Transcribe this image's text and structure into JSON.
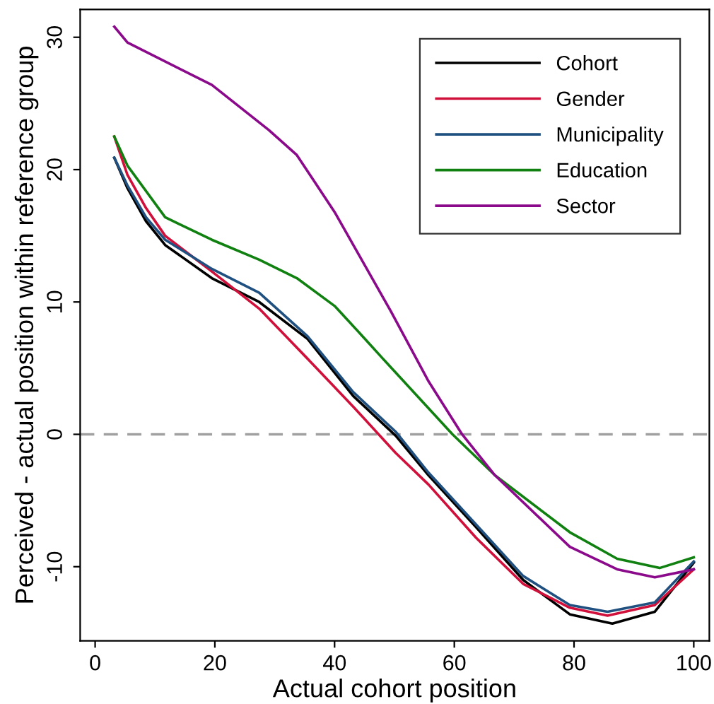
{
  "chart_data": {
    "type": "line",
    "xlabel": "Actual cohort position",
    "ylabel": "Perceived - actual position within reference group",
    "xlim": [
      -2.5,
      102.6
    ],
    "ylim": [
      -15.6,
      32.1
    ],
    "xticks": [
      0,
      20,
      40,
      60,
      80,
      100
    ],
    "yticks": [
      -10,
      0,
      10,
      20,
      30
    ],
    "grid": false,
    "legend": "top right",
    "marker": "none",
    "line_style": "solid",
    "ref_lines": [
      {
        "axis": "y",
        "value": 0,
        "color": "#a0a0a0",
        "line_style": "dashed"
      }
    ],
    "series": [
      {
        "name": "Cohort",
        "color": "#000000",
        "x": [
          3.2,
          5.4,
          8.5,
          11.7,
          19.5,
          27.4,
          35.5,
          43.1,
          50.2,
          55.7,
          63.6,
          71.5,
          79.3,
          86.4,
          93.5,
          100
        ],
        "values": [
          20.9,
          18.6,
          16.1,
          14.3,
          11.8,
          10.0,
          7.2,
          2.9,
          -0.1,
          -3.1,
          -7.0,
          -11.0,
          -13.6,
          -14.3,
          -13.4,
          -9.7
        ]
      },
      {
        "name": "Gender",
        "color": "#d0103a",
        "x": [
          3.2,
          5.4,
          8.5,
          11.7,
          19.5,
          27.4,
          32.1,
          35.3,
          43.1,
          50.2,
          55.7,
          63.6,
          71.5,
          79.3,
          85.6,
          93.5,
          100
        ],
        "values": [
          22.5,
          19.6,
          17.1,
          15.0,
          12.3,
          9.5,
          7.3,
          5.8,
          2.1,
          -1.4,
          -3.8,
          -7.8,
          -11.3,
          -13.1,
          -13.7,
          -12.9,
          -10.2
        ]
      },
      {
        "name": "Municipality",
        "color": "#1f5080",
        "x": [
          3.2,
          5.4,
          8.5,
          11.7,
          19.5,
          27.4,
          35.5,
          43.1,
          50.2,
          55.7,
          63.6,
          71.5,
          79.3,
          85.6,
          93.5,
          100
        ],
        "values": [
          20.9,
          18.8,
          16.4,
          14.7,
          12.5,
          10.7,
          7.4,
          3.2,
          0.2,
          -2.9,
          -6.8,
          -10.7,
          -12.9,
          -13.4,
          -12.7,
          -9.6
        ]
      },
      {
        "name": "Education",
        "color": "#108010",
        "x": [
          3.2,
          5.4,
          11.7,
          19.5,
          27.4,
          33.7,
          40,
          45.1,
          47.9,
          59.7,
          66.8,
          79.3,
          87.2,
          94.3,
          100
        ],
        "values": [
          22.5,
          20.3,
          16.4,
          14.7,
          13.2,
          11.8,
          9.7,
          7.2,
          5.8,
          0,
          -3.1,
          -7.4,
          -9.4,
          -10.1,
          -9.3
        ]
      },
      {
        "name": "Sector",
        "color": "#8b0a8b",
        "x": [
          3.2,
          5.4,
          19.5,
          29,
          33.7,
          40,
          49.4,
          55.7,
          61.3,
          66.8,
          79.3,
          87.2,
          93.5,
          100
        ],
        "values": [
          30.8,
          29.6,
          26.4,
          23.0,
          21.1,
          16.8,
          9.3,
          4.0,
          0,
          -3.1,
          -8.5,
          -10.2,
          -10.8,
          -10.2
        ]
      }
    ]
  }
}
